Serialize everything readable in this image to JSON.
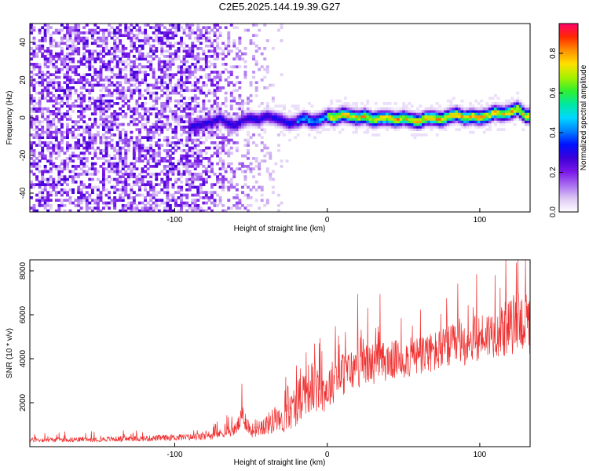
{
  "title": "C2E5.2025.144.19.39.G27",
  "chart_data": [
    {
      "type": "heatmap",
      "xlabel": "Height of straight line (km)",
      "ylabel": "Frequency (Hz)",
      "xlim": [
        -195,
        133
      ],
      "ylim": [
        -50,
        50
      ],
      "x_ticks": [
        -100,
        0,
        100
      ],
      "y_ticks": [
        -40,
        -20,
        0,
        20,
        40
      ],
      "grid": false,
      "colorbar": {
        "label": "Normalized spectral amplitude",
        "range": [
          0,
          0.95
        ],
        "ticks": [
          0.0,
          0.2,
          0.4,
          0.6,
          0.8
        ],
        "colors": [
          "#ffffff",
          "#ddc8f4",
          "#a86cf0",
          "#7a18e8",
          "#3d00d8",
          "#0010ff",
          "#0080ff",
          "#00d8ff",
          "#00e8a0",
          "#30f030",
          "#a8f000",
          "#ffe000",
          "#ff9000",
          "#ff2a00",
          "#ff006a"
        ]
      },
      "series": [
        {
          "ridge_x": [
            -90,
            -80,
            -75,
            -70,
            -65,
            -60,
            -55,
            -50,
            -45,
            -40,
            -35,
            -30,
            -25,
            -20,
            -15,
            -10,
            -5,
            0,
            5,
            10,
            15,
            20,
            25,
            30,
            35,
            40,
            45,
            50,
            55,
            60,
            65,
            70,
            75,
            80,
            85,
            90,
            95,
            100,
            105,
            110,
            115,
            120,
            125,
            130
          ],
          "ridge_freq": [
            -5,
            -3,
            -2,
            0,
            -3,
            -4,
            -1,
            0,
            -1,
            1,
            0,
            -1,
            -3,
            -2,
            0,
            -2,
            -1,
            1,
            0,
            2,
            1,
            0,
            1,
            -1,
            0,
            0,
            -1,
            0,
            -1,
            -2,
            0,
            0,
            -1,
            1,
            2,
            0,
            1,
            0,
            1,
            3,
            2,
            3,
            5,
            1
          ]
        }
      ]
    },
    {
      "type": "line",
      "xlabel": "Height of straight line (km)",
      "ylabel": "SNR (10 * v/v)",
      "xlim": [
        -195,
        133
      ],
      "ylim": [
        0,
        8500
      ],
      "x_ticks": [
        -100,
        0,
        100
      ],
      "y_ticks": [
        2000,
        4000,
        6000,
        8000
      ],
      "grid": false,
      "line_color": "#f03030",
      "series": [
        {
          "x": [
            -195,
            -170,
            -145,
            -120,
            -100,
            -90,
            -80,
            -70,
            -60,
            -55,
            -50,
            -45,
            -40,
            -35,
            -30,
            -25,
            -20,
            -15,
            -10,
            -5,
            0,
            5,
            10,
            20,
            30,
            40,
            50,
            60,
            70,
            80,
            90,
            100,
            110,
            120,
            125,
            130,
            133
          ],
          "y": [
            300,
            320,
            340,
            370,
            420,
            430,
            450,
            600,
            800,
            1400,
            700,
            900,
            1000,
            1200,
            1100,
            1500,
            2000,
            2600,
            2700,
            2500,
            2600,
            3100,
            3300,
            3600,
            3800,
            3900,
            4000,
            4100,
            4300,
            4500,
            4700,
            5000,
            5200,
            5400,
            5800,
            5600,
            5400
          ],
          "noise_amplitude": [
            180,
            180,
            200,
            220,
            250,
            260,
            280,
            350,
            500,
            900,
            500,
            700,
            800,
            1000,
            900,
            1300,
            1800,
            1900,
            2000,
            1700,
            1700,
            1700,
            1700,
            1600,
            1600,
            1500,
            1500,
            1600,
            1600,
            1700,
            1700,
            1800,
            1900,
            2200,
            2400,
            2300,
            2100
          ]
        }
      ]
    }
  ]
}
